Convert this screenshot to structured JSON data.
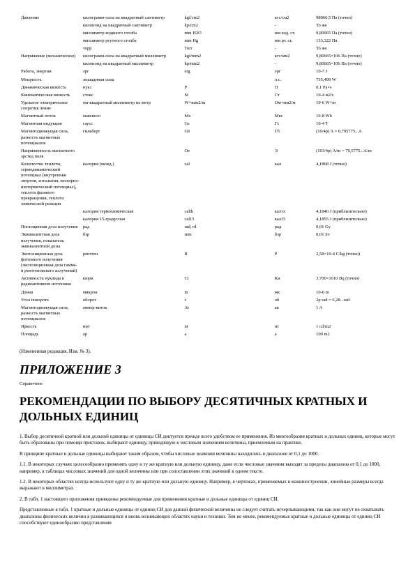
{
  "rows": [
    {
      "c1": "Давление",
      "c2": "килограмм-сила на квадратный сантиметр",
      "c3": "kgf/cm2",
      "c4": "",
      "c5": "кгс/см2",
      "c6": "98066,5 Па (точно)"
    },
    {
      "c1": "",
      "c2": "килопонд на квадратный сантиметр",
      "c3": "kp/cm2",
      "c4": "",
      "c5": "-",
      "c6": "То же"
    },
    {
      "c1": "",
      "c2": "миллиметр водяного столба",
      "c3": "mm H2O",
      "c4": "",
      "c5": "мм вод. ст.",
      "c6": "9,80665 Па (точно)"
    },
    {
      "c1": "",
      "c2": "миллиметр ртутного столба",
      "c3": "mm Hg",
      "c4": "",
      "c5": "мм рт. ст.",
      "c6": "133,322 Па"
    },
    {
      "c1": "",
      "c2": "торр",
      "c3": "Torr",
      "c4": "",
      "c5": "-",
      "c6": "То же"
    },
    {
      "c1": "Напряжение (механическое)",
      "c2": "килограмм-сила на квадратный миллиметр",
      "c3": "kgf/mm2",
      "c4": "",
      "c5": "кгс/мм2",
      "c6": "9,80665×106 Па (точно)"
    },
    {
      "c1": "",
      "c2": "килопонд на квадратный миллиметр",
      "c3": "kp/mm2",
      "c4": "",
      "c5": "-",
      "c6": "9,80665×106 Па (точно)"
    },
    {
      "c1": "Работа, энергия",
      "c2": "эрг",
      "c3": "erg",
      "c4": "",
      "c5": "эрг",
      "c6": "10-7 J"
    },
    {
      "c1": "Мощность",
      "c2": "лошадиная сила",
      "c3": "",
      "c4": "",
      "c5": "л.с.",
      "c6": "735,499 W"
    },
    {
      "c1": "Динамическая вязкость",
      "c2": "пуаз",
      "c3": "P",
      "c4": "",
      "c5": "П",
      "c6": "0,1 Pa×s"
    },
    {
      "c1": "Кинематическая вязкость",
      "c2": "стокс",
      "c3": "St",
      "c4": "",
      "c5": "Ст",
      "c6": "10-4 м2/s"
    },
    {
      "c1": "Удельное электрическое сопротив ление",
      "c2": "ом-квадратный миллиметр на метр",
      "c3": "W×mm2/m",
      "c4": "",
      "c5": "Ом×мм2/м",
      "c6": "10-6 W×m"
    },
    {
      "c1": "Магнитный поток",
      "c2": "максвелл",
      "c3": "Mx",
      "c4": "",
      "c5": "Мкс",
      "c6": "10-8 Wb"
    },
    {
      "c1": "Магнитная индукция",
      "c2": "гаусс",
      "c3": "Gs",
      "c4": "",
      "c5": "Гс",
      "c6": "10-4 T"
    },
    {
      "c1": "Магнитодвижущая сила, разность магнитных потенциалов",
      "c2": "гильберт",
      "c3": "Gb",
      "c4": "",
      "c5": "Гб",
      "c6": "(10/4p) A = 0,795775...A"
    },
    {
      "c1": "Напряженность магнитного эрстед поля",
      "c2": "",
      "c3": "Oe",
      "c4": "",
      "c5": "Э",
      "c6": "(103/4p) A/m = 79,5775...A/m"
    },
    {
      "c1": "Количество теплоты, термодинамический потенциал (внутренняя энергия, энтальпия, изохорно-изотермический потенциал), теплота фазового превращения, теплота химической реакции",
      "c2": "калория (межд.)",
      "c3": "cal",
      "c4": "",
      "c5": "кал",
      "c6": "4,1868 J (точно)"
    },
    {
      "r2only": true,
      "c2": "калория термохимическая",
      "c3": "calth",
      "c4": "",
      "c5": "калтх",
      "c6": "4,1840 J (приблизительно)"
    },
    {
      "r2only": true,
      "c2": "калория 15-градусная",
      "c3": "cal15",
      "c4": "",
      "c5": "кал15",
      "c6": "4,1855 J (приблизительно)"
    },
    {
      "c1": "Поглощенная доза излучения",
      "c2": "рад",
      "c3": "rad, rd",
      "c4": "",
      "c5": "рад",
      "c6": "0,01 Gy"
    },
    {
      "c1": "Эквивалентная доза излучения, показатель эквивалентной дозы",
      "c2": "бэр",
      "c3": "rem",
      "c4": "",
      "c5": "бэр",
      "c6": "0,01 Sv"
    },
    {
      "c1": "Экспозиционная доза фотонного излучения (экспозиционная доза гамма- и рентгеновского излучений)",
      "c2": "рентген",
      "c3": "R",
      "c4": "",
      "c5": "Р",
      "c6": "2,58×10-4 C/kg (точно)"
    },
    {
      "c1": "Активность нуклида в радиоактивном источнике",
      "c2": "кюри",
      "c3": "Ci",
      "c4": "",
      "c5": "Ки",
      "c6": "3,700×1010 Bq (точно)"
    },
    {
      "c1": "Длина",
      "c2": "микрон",
      "c3": "m",
      "c4": "",
      "c5": "мк",
      "c6": "10-6 m"
    },
    {
      "c1": "Угол поворота",
      "c2": "оборот",
      "c3": "r",
      "c4": "",
      "c5": "об",
      "c6": "2p rad = 6,28...rad"
    },
    {
      "c1": "Магнитодвижущая сила, разность магнитных потенциалов",
      "c2": "ампер-виток",
      "c3": "At",
      "c4": "",
      "c5": "ав",
      "c6": "1 A"
    },
    {
      "c1": "Яркость",
      "c2": "нит",
      "c3": "nt",
      "c4": "",
      "c5": "нт",
      "c6": "1 cd/m2"
    },
    {
      "c1": "Площадь",
      "c2": "ар",
      "c3": "a",
      "c4": "",
      "c5": "а",
      "c6": "100 m2"
    }
  ],
  "amend": "(Измененная редакция, Изм. № 3).",
  "appendix": "ПРИЛОЖЕНИЕ 3",
  "refnote": "Справочное",
  "heading": "РЕКОМЕНДАЦИИ ПО ВЫБОРУ ДЕСЯТИЧНЫХ КРАТНЫХ И ДОЛЬНЫХ ЕДИНИЦ",
  "paragraphs": [
    "1. Выбор десятичной кратной или дольной единицы от единицы СИ диктуется прежде всего удобством ее применения. Из многообразия кратных и дольных единиц, которые могут быть образованы при помощи приставок, выбирают единицу, приводящую к числовым значениям величины, приемлемым на практике.",
    "В принципе кратные и дольные единицы выбирают таким образом, чтобы числовые значения величины находились в диапазоне от 0,1 до 1000.",
    "1.1. В некоторых случаях целесообразно применять одну и ту же кратную или дольную единицу, даже если числовые значения выходят за пределы диапазона от 0,1 до 1000, например, в таблицах числовых значений для одной величины или при сопоставлении этих значений в одном тексте.",
    "1.2. В некоторых областях всегда используют одну и ту же кратную или дольную единицу. Например, в чертежах, применяемых в машиностроении, линейные размеры всегда выражают в миллиметрах.",
    "2. В табл. 1 настоящего приложения приведены рекомендуемые для применения кратные и дольные единицы от единиц СИ.",
    "Представленные в табл. 1 кратные и дольные единицы от единиц СИ для данной физической величины не следует считать исчерпывающими, так как они могут не охватывать диапазоны физических величин в развивающихся и вновь возникающих областях науки и техники. Тем не менее, рекомендуемые кратные и дольные единицы от единиц СИ способствуют единообразию представления"
  ]
}
